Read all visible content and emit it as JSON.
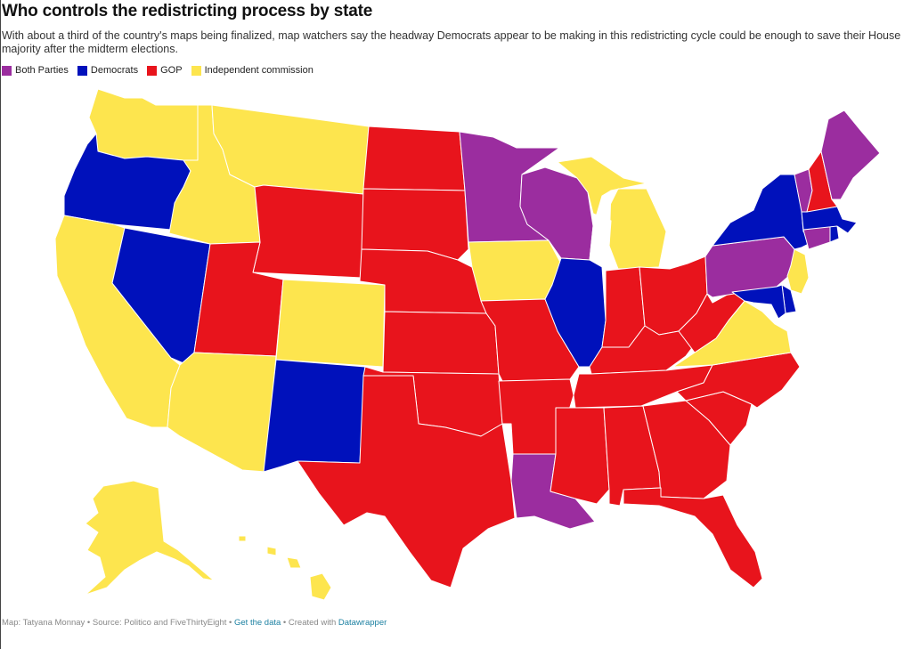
{
  "header": {
    "title": "Who controls the redistricting process by state",
    "subtitle": "With about a third of the country's maps being finalized, map watchers say the headway Democrats appear to be making in this redistricting cycle could be enough to save their House majority after the midterm elections."
  },
  "legend": [
    {
      "label": "Both Parties",
      "color": "#9b2d9f"
    },
    {
      "label": "Democrats",
      "color": "#0011bb"
    },
    {
      "label": "GOP",
      "color": "#e8141c"
    },
    {
      "label": "Independent commission",
      "color": "#fde54e"
    }
  ],
  "footer": {
    "prefix": "Map: Tatyana Monnay • Source: Politico and FiveThirtyEight • ",
    "data_link": "Get the data",
    "middle": " • Created with ",
    "tool_link": "Datawrapper"
  },
  "colors": {
    "both": "#9b2d9f",
    "dem": "#0011bb",
    "gop": "#e8141c",
    "ind": "#fde54e"
  },
  "states": [
    {
      "id": "WA",
      "control": "ind"
    },
    {
      "id": "OR",
      "control": "dem"
    },
    {
      "id": "CA",
      "control": "ind"
    },
    {
      "id": "NV",
      "control": "dem"
    },
    {
      "id": "ID",
      "control": "ind"
    },
    {
      "id": "MT",
      "control": "ind"
    },
    {
      "id": "WY",
      "control": "gop"
    },
    {
      "id": "UT",
      "control": "gop"
    },
    {
      "id": "AZ",
      "control": "ind"
    },
    {
      "id": "CO",
      "control": "ind"
    },
    {
      "id": "NM",
      "control": "dem"
    },
    {
      "id": "ND",
      "control": "gop"
    },
    {
      "id": "SD",
      "control": "gop"
    },
    {
      "id": "NE",
      "control": "gop"
    },
    {
      "id": "KS",
      "control": "gop"
    },
    {
      "id": "OK",
      "control": "gop"
    },
    {
      "id": "TX",
      "control": "gop"
    },
    {
      "id": "MN",
      "control": "both"
    },
    {
      "id": "IA",
      "control": "ind"
    },
    {
      "id": "MO",
      "control": "gop"
    },
    {
      "id": "AR",
      "control": "gop"
    },
    {
      "id": "LA",
      "control": "both"
    },
    {
      "id": "WI",
      "control": "both"
    },
    {
      "id": "IL",
      "control": "dem"
    },
    {
      "id": "MI",
      "control": "ind"
    },
    {
      "id": "IN",
      "control": "gop"
    },
    {
      "id": "OH",
      "control": "gop"
    },
    {
      "id": "KY",
      "control": "gop"
    },
    {
      "id": "TN",
      "control": "gop"
    },
    {
      "id": "MS",
      "control": "gop"
    },
    {
      "id": "AL",
      "control": "gop"
    },
    {
      "id": "GA",
      "control": "gop"
    },
    {
      "id": "FL",
      "control": "gop"
    },
    {
      "id": "SC",
      "control": "gop"
    },
    {
      "id": "NC",
      "control": "gop"
    },
    {
      "id": "VA",
      "control": "ind"
    },
    {
      "id": "WV",
      "control": "gop"
    },
    {
      "id": "PA",
      "control": "both"
    },
    {
      "id": "NY",
      "control": "dem"
    },
    {
      "id": "NJ",
      "control": "ind"
    },
    {
      "id": "DE",
      "control": "dem"
    },
    {
      "id": "MD",
      "control": "dem"
    },
    {
      "id": "CT",
      "control": "both"
    },
    {
      "id": "RI",
      "control": "dem"
    },
    {
      "id": "MA",
      "control": "dem"
    },
    {
      "id": "VT",
      "control": "both"
    },
    {
      "id": "NH",
      "control": "gop"
    },
    {
      "id": "ME",
      "control": "both"
    },
    {
      "id": "AK",
      "control": "ind"
    },
    {
      "id": "HI",
      "control": "ind"
    }
  ]
}
